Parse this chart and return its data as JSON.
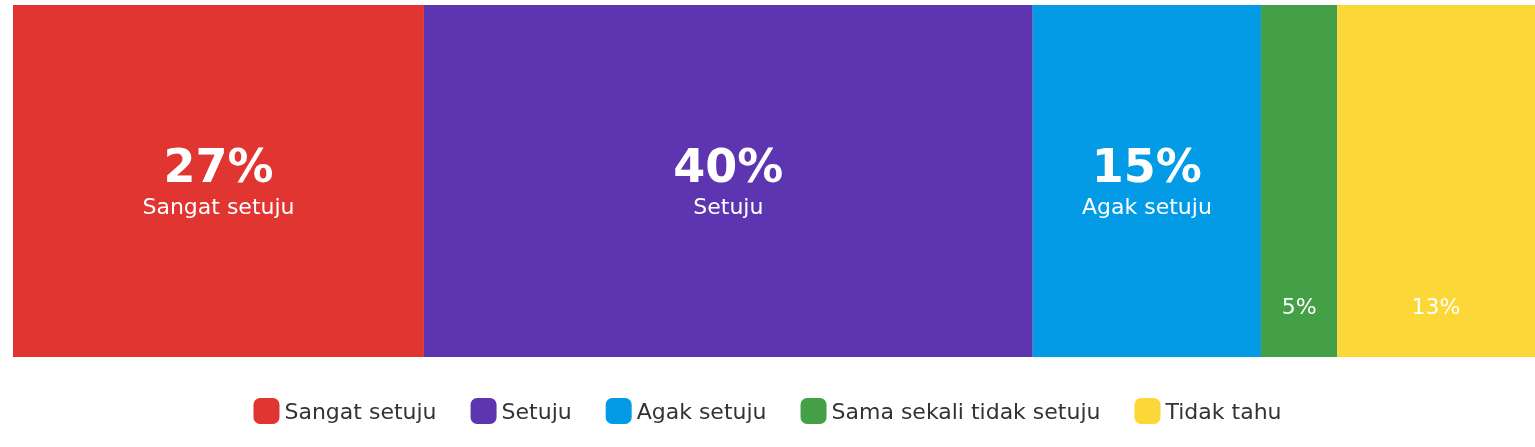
{
  "chart_data": {
    "type": "bar",
    "orientation": "horizontal",
    "stacked": true,
    "categories": [
      null
    ],
    "tick_labels": false,
    "legend": "bottom",
    "series": [
      {
        "name": "Sangat setuju",
        "color": "#e03531",
        "values": [
          27
        ],
        "value_labels": [
          "27%\nSangat setuju"
        ]
      },
      {
        "name": "Setuju",
        "color": "#5e35b1",
        "values": [
          40
        ],
        "value_labels": [
          "40%\nSetuju"
        ]
      },
      {
        "name": "Agak setuju",
        "color": "#039be5",
        "values": [
          15
        ],
        "value_labels": [
          "15%\nAgak setuju"
        ]
      },
      {
        "name": "Sama sekali tidak setuju",
        "color": "#43a047",
        "values": [
          5
        ],
        "value_labels": [
          "5%"
        ]
      },
      {
        "name": "Tidak tahu",
        "color": "#fbd737",
        "values": [
          13
        ],
        "value_labels": [
          "13%"
        ]
      }
    ]
  }
}
